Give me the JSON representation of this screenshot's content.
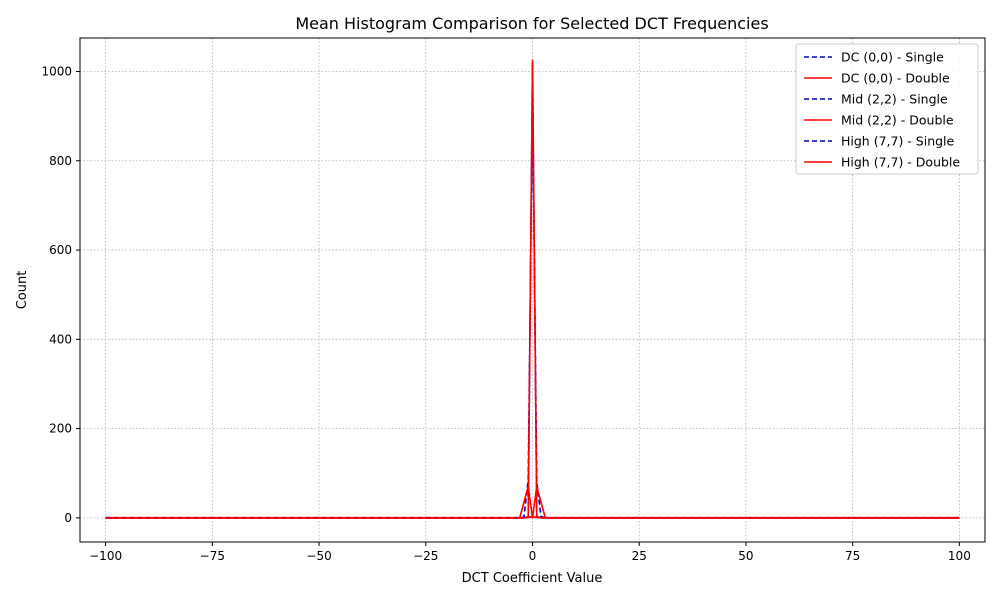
{
  "chart_data": {
    "type": "line",
    "title": "Mean Histogram Comparison for Selected DCT Frequencies",
    "xlabel": "DCT Coefficient Value",
    "ylabel": "Count",
    "xlim": [
      -106,
      106
    ],
    "ylim": [
      -54,
      1075
    ],
    "xticks": [
      -100,
      -75,
      -50,
      -25,
      0,
      25,
      50,
      75,
      100
    ],
    "xtick_labels": [
      "−100",
      "−75",
      "−50",
      "−25",
      "0",
      "25",
      "50",
      "75",
      "100"
    ],
    "yticks": [
      0,
      200,
      400,
      600,
      800,
      1000
    ],
    "ytick_labels": [
      "0",
      "200",
      "400",
      "600",
      "800",
      "1000"
    ],
    "grid": true,
    "legend_position": "top-right",
    "series": [
      {
        "name": "DC (0,0) - Single",
        "color": "#0000cc",
        "dash": "dashed",
        "points": [
          [
            -100,
            0.5
          ],
          [
            -75,
            0.5
          ],
          [
            -50,
            0.5
          ],
          [
            -25,
            0.5
          ],
          [
            -2,
            0.5
          ],
          [
            -1,
            1
          ],
          [
            0,
            3
          ],
          [
            1,
            1
          ],
          [
            2,
            0.5
          ],
          [
            25,
            0.5
          ],
          [
            50,
            0.5
          ],
          [
            75,
            0.5
          ],
          [
            100,
            0.5
          ]
        ]
      },
      {
        "name": "DC (0,0) - Double",
        "color": "#ff0000",
        "dash": "solid",
        "points": [
          [
            -100,
            0.5
          ],
          [
            -75,
            0.5
          ],
          [
            -50,
            0.5
          ],
          [
            -25,
            0.5
          ],
          [
            -2,
            0.5
          ],
          [
            -1,
            1
          ],
          [
            0,
            3
          ],
          [
            1,
            1
          ],
          [
            2,
            0.5
          ],
          [
            25,
            0.5
          ],
          [
            50,
            0.5
          ],
          [
            75,
            0.5
          ],
          [
            100,
            0.5
          ]
        ]
      },
      {
        "name": "Mid (2,2) - Single",
        "color": "#0000cc",
        "dash": "dashed",
        "points": [
          [
            -100,
            0
          ],
          [
            -50,
            0
          ],
          [
            -3,
            0
          ],
          [
            -2,
            2
          ],
          [
            -1,
            85
          ],
          [
            0,
            950
          ],
          [
            1,
            80
          ],
          [
            2,
            3
          ],
          [
            3,
            0
          ],
          [
            50,
            0
          ],
          [
            100,
            0
          ]
        ]
      },
      {
        "name": "Mid (2,2) - Double",
        "color": "#ff0000",
        "dash": "solid",
        "points": [
          [
            -100,
            0
          ],
          [
            -50,
            0
          ],
          [
            -3,
            0
          ],
          [
            -2,
            35
          ],
          [
            -1,
            70
          ],
          [
            0,
            0
          ],
          [
            1,
            70
          ],
          [
            2,
            35
          ],
          [
            3,
            0
          ],
          [
            50,
            0
          ],
          [
            100,
            0
          ]
        ]
      },
      {
        "name": "High (7,7) - Single",
        "color": "#0000cc",
        "dash": "dashed",
        "points": [
          [
            -100,
            0
          ],
          [
            -50,
            0
          ],
          [
            -2,
            0
          ],
          [
            -1,
            3
          ],
          [
            0,
            1020
          ],
          [
            1,
            3
          ],
          [
            2,
            0
          ],
          [
            50,
            0
          ],
          [
            100,
            0
          ]
        ]
      },
      {
        "name": "High (7,7) - Double",
        "color": "#ff0000",
        "dash": "solid",
        "points": [
          [
            -100,
            0
          ],
          [
            -50,
            0
          ],
          [
            -2,
            0
          ],
          [
            -1,
            3
          ],
          [
            0,
            1025
          ],
          [
            1,
            3
          ],
          [
            2,
            0
          ],
          [
            50,
            0
          ],
          [
            100,
            0
          ]
        ]
      }
    ]
  }
}
